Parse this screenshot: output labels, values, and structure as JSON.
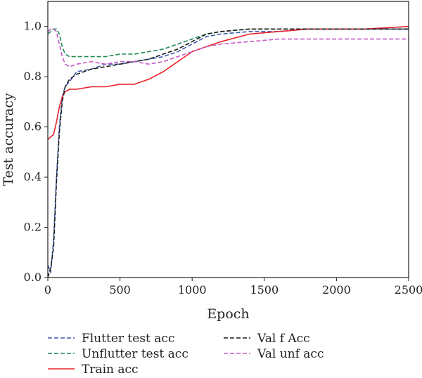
{
  "chart_data": {
    "type": "line",
    "title": "",
    "xlabel": "Epoch",
    "ylabel": "Test accuracy",
    "xlim": [
      0,
      2500
    ],
    "ylim": [
      0.0,
      1.1
    ],
    "xticks": [
      0,
      500,
      1000,
      1500,
      2000,
      2500
    ],
    "yticks": [
      0.0,
      0.2,
      0.4,
      0.6,
      0.8,
      1.0
    ],
    "xtick_labels": [
      "0",
      "500",
      "1000",
      "1500",
      "2000",
      "2500"
    ],
    "ytick_labels": [
      "0.0",
      "0.2",
      "0.4",
      "0.6",
      "0.8",
      "1.0"
    ],
    "grid": false,
    "legend_position": "below-plot",
    "series": [
      {
        "name": "Flutter test acc",
        "color": "#3b5bab",
        "style": "dashed",
        "x": [
          0,
          20,
          40,
          60,
          80,
          100,
          120,
          150,
          200,
          300,
          400,
          500,
          600,
          700,
          800,
          900,
          1000,
          1100,
          1200,
          1400,
          1600,
          1800,
          2000,
          2200,
          2500
        ],
        "y": [
          0.05,
          0.02,
          0.15,
          0.4,
          0.6,
          0.72,
          0.76,
          0.78,
          0.82,
          0.83,
          0.85,
          0.85,
          0.86,
          0.87,
          0.88,
          0.9,
          0.93,
          0.96,
          0.97,
          0.98,
          0.98,
          0.99,
          0.99,
          0.99,
          0.99
        ]
      },
      {
        "name": "Unflutter test acc",
        "color": "#1f8a52",
        "style": "dashed",
        "x": [
          0,
          20,
          40,
          60,
          80,
          100,
          120,
          150,
          200,
          300,
          400,
          500,
          600,
          700,
          800,
          900,
          1000,
          1100,
          1200,
          1400,
          1600,
          1800,
          2000,
          2200,
          2500
        ],
        "y": [
          0.97,
          0.98,
          0.99,
          0.99,
          0.97,
          0.92,
          0.89,
          0.88,
          0.88,
          0.88,
          0.88,
          0.89,
          0.89,
          0.9,
          0.91,
          0.93,
          0.95,
          0.97,
          0.98,
          0.99,
          0.99,
          0.99,
          0.99,
          0.99,
          0.99
        ]
      },
      {
        "name": "Train acc",
        "color": "#e8212a",
        "style": "solid",
        "x": [
          0,
          20,
          40,
          60,
          80,
          100,
          120,
          150,
          200,
          300,
          400,
          500,
          600,
          700,
          800,
          900,
          1000,
          1100,
          1200,
          1400,
          1600,
          1800,
          2000,
          2200,
          2500
        ],
        "y": [
          0.55,
          0.56,
          0.57,
          0.62,
          0.68,
          0.72,
          0.74,
          0.75,
          0.75,
          0.76,
          0.76,
          0.77,
          0.77,
          0.79,
          0.82,
          0.86,
          0.9,
          0.92,
          0.94,
          0.97,
          0.98,
          0.99,
          0.99,
          0.99,
          1.0
        ]
      },
      {
        "name": "Val f Acc",
        "color": "#1a1a1a",
        "style": "dashed",
        "x": [
          0,
          20,
          40,
          60,
          80,
          100,
          120,
          150,
          200,
          300,
          400,
          500,
          600,
          700,
          800,
          900,
          1000,
          1100,
          1200,
          1400,
          1600,
          1800,
          2000,
          2200,
          2500
        ],
        "y": [
          0.0,
          0.04,
          0.12,
          0.38,
          0.58,
          0.7,
          0.76,
          0.79,
          0.81,
          0.83,
          0.84,
          0.85,
          0.86,
          0.87,
          0.89,
          0.91,
          0.94,
          0.97,
          0.98,
          0.99,
          0.99,
          0.99,
          0.99,
          0.99,
          0.99
        ]
      },
      {
        "name": "Val unf acc",
        "color": "#c45bc6",
        "style": "dashed",
        "x": [
          0,
          20,
          40,
          60,
          80,
          100,
          120,
          150,
          200,
          300,
          400,
          500,
          600,
          700,
          800,
          900,
          1000,
          1100,
          1200,
          1400,
          1600,
          1800,
          2000,
          2200,
          2500
        ],
        "y": [
          0.98,
          0.99,
          0.99,
          0.98,
          0.93,
          0.88,
          0.85,
          0.84,
          0.85,
          0.86,
          0.85,
          0.86,
          0.86,
          0.85,
          0.86,
          0.88,
          0.9,
          0.92,
          0.93,
          0.94,
          0.95,
          0.95,
          0.95,
          0.95,
          0.95
        ]
      }
    ]
  }
}
